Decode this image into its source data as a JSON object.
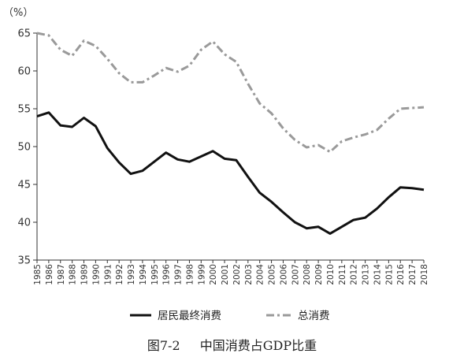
{
  "chart_data": {
    "type": "line",
    "unit_label": "（%）",
    "caption_number": "图7-2",
    "caption_title": "中国消费占GDP比重",
    "x": [
      "1985",
      "1986",
      "1987",
      "1988",
      "1989",
      "1990",
      "1991",
      "1992",
      "1993",
      "1994",
      "1995",
      "1996",
      "1997",
      "1998",
      "1999",
      "2000",
      "2001",
      "2002",
      "2003",
      "2004",
      "2005",
      "2006",
      "2007",
      "2008",
      "2009",
      "2010",
      "2011",
      "2012",
      "2013",
      "2014",
      "2015",
      "2016",
      "2017",
      "2018"
    ],
    "ylim": [
      35,
      65
    ],
    "yticks": [
      35,
      40,
      45,
      50,
      55,
      60,
      65
    ],
    "grid": false,
    "legend_position": "bottom",
    "series": [
      {
        "name": "居民最终消费",
        "style": "solid",
        "color": "#111111",
        "values": [
          54.0,
          54.5,
          52.8,
          52.6,
          53.8,
          52.7,
          49.8,
          47.9,
          46.4,
          46.8,
          48.0,
          49.2,
          48.3,
          48.0,
          48.7,
          49.4,
          48.4,
          48.2,
          46.0,
          43.9,
          42.7,
          41.3,
          40.0,
          39.2,
          39.4,
          38.5,
          39.4,
          40.3,
          40.6,
          41.8,
          43.3,
          44.6,
          44.5,
          44.3
        ]
      },
      {
        "name": "总消费",
        "style": "dashdot",
        "color": "#9a9a9a",
        "values": [
          65.0,
          64.7,
          62.8,
          62.0,
          64.0,
          63.3,
          61.6,
          59.7,
          58.5,
          58.5,
          59.4,
          60.4,
          59.9,
          60.7,
          62.8,
          63.9,
          62.2,
          61.2,
          58.3,
          55.7,
          54.4,
          52.4,
          50.9,
          49.9,
          50.2,
          49.3,
          50.7,
          51.2,
          51.6,
          52.2,
          53.7,
          55.0,
          55.1,
          55.2
        ]
      }
    ]
  }
}
